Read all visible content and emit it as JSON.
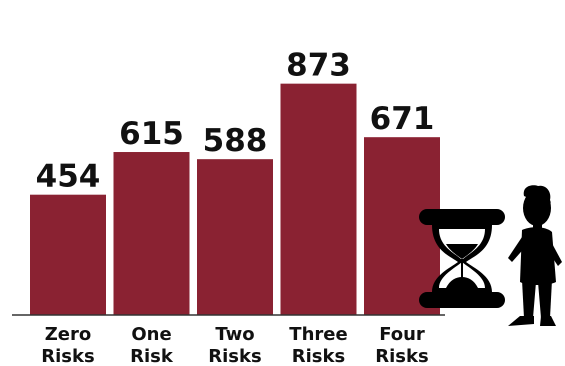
{
  "chart_data": {
    "type": "bar",
    "categories": [
      [
        "Zero",
        "Risks"
      ],
      [
        "One",
        "Risk"
      ],
      [
        "Two",
        "Risks"
      ],
      [
        "Three",
        "Risks"
      ],
      [
        "Four",
        "Risks"
      ]
    ],
    "values": [
      454,
      615,
      588,
      873,
      671
    ],
    "ylim": [
      0,
      1000
    ],
    "grid": false,
    "legend": "none",
    "colors": {
      "bar": "#8a2232",
      "axis": "#333333",
      "text": "#111111",
      "icon": "#000000"
    },
    "decoration": [
      "hourglass-icon",
      "child-silhouette-icon"
    ]
  }
}
